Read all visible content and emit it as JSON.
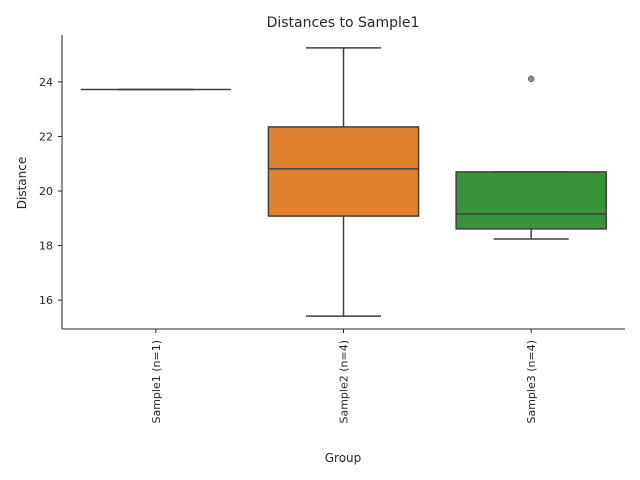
{
  "chart_data": {
    "type": "box",
    "title": "Distances to Sample1",
    "xlabel": "Group",
    "ylabel": "Distance",
    "ylim": [
      14.94,
      25.72
    ],
    "yticks": [
      16,
      18,
      20,
      22,
      24
    ],
    "categories": [
      "Sample1 (n=1)",
      "Sample2 (n=4)",
      "Sample3 (n=4)"
    ],
    "boxes": [
      {
        "min": 23.72,
        "q1": 23.72,
        "median": 23.72,
        "q3": 23.72,
        "max": 23.72,
        "outliers": [],
        "color": "#3274a1"
      },
      {
        "min": 15.41,
        "q1": 19.08,
        "median": 20.81,
        "q3": 22.35,
        "max": 25.25,
        "outliers": [],
        "color": "#e1812c"
      },
      {
        "min": 18.24,
        "q1": 18.61,
        "median": 19.16,
        "q3": 20.7,
        "max": 20.7,
        "outliers": [
          24.11
        ],
        "color": "#3a923a"
      }
    ],
    "grid": false
  }
}
